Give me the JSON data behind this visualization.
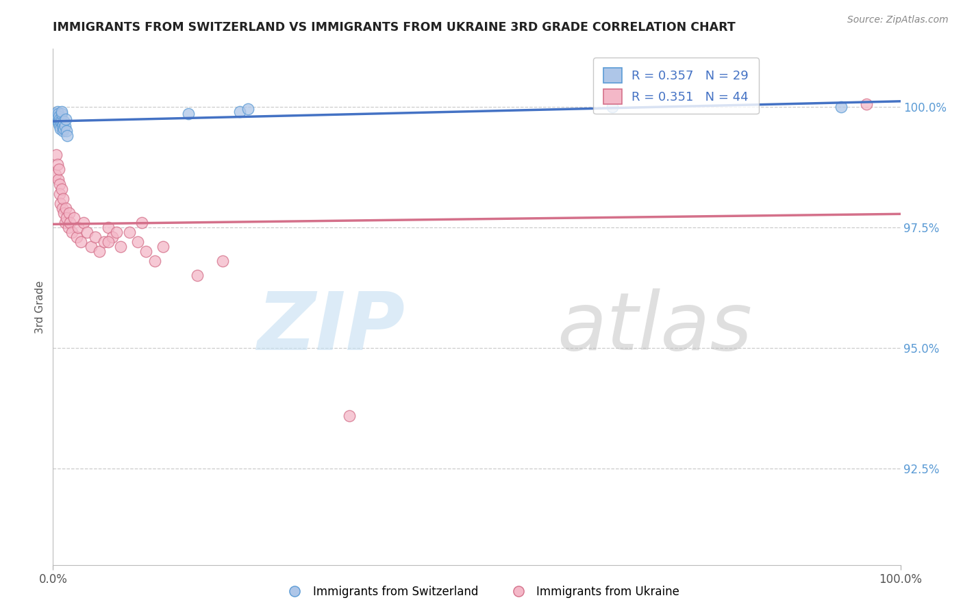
{
  "title": "IMMIGRANTS FROM SWITZERLAND VS IMMIGRANTS FROM UKRAINE 3RD GRADE CORRELATION CHART",
  "source": "Source: ZipAtlas.com",
  "ylabel": "3rd Grade",
  "yticks": [
    92.5,
    95.0,
    97.5,
    100.0
  ],
  "ytick_labels": [
    "92.5%",
    "95.0%",
    "97.5%",
    "100.0%"
  ],
  "xtick_labels": [
    "0.0%",
    "100.0%"
  ],
  "legend_labels": [
    "Immigrants from Switzerland",
    "Immigrants from Ukraine"
  ],
  "legend_R": [
    0.357,
    0.351
  ],
  "legend_N": [
    29,
    44
  ],
  "blue_fill": "#aec6e8",
  "blue_edge": "#5b9bd5",
  "pink_fill": "#f4b8c8",
  "pink_edge": "#d4708a",
  "blue_line": "#4472c4",
  "pink_line": "#d4708a",
  "ymin": 90.5,
  "ymax": 101.2,
  "xmin": 0.0,
  "xmax": 1.0,
  "swiss_x": [
    0.003,
    0.004,
    0.005,
    0.005,
    0.006,
    0.006,
    0.007,
    0.007,
    0.008,
    0.008,
    0.009,
    0.009,
    0.01,
    0.01,
    0.01,
    0.011,
    0.012,
    0.012,
    0.013,
    0.013,
    0.014,
    0.015,
    0.016,
    0.017,
    0.16,
    0.22,
    0.23,
    0.66,
    0.93
  ],
  "swiss_y": [
    99.85,
    99.75,
    99.9,
    99.8,
    99.85,
    99.7,
    99.8,
    99.65,
    99.75,
    99.6,
    99.7,
    99.55,
    99.7,
    99.85,
    99.9,
    99.6,
    99.5,
    99.65,
    99.55,
    99.7,
    99.6,
    99.75,
    99.5,
    99.4,
    99.85,
    99.9,
    99.95,
    100.0,
    100.0
  ],
  "ukraine_x": [
    0.003,
    0.004,
    0.005,
    0.006,
    0.007,
    0.008,
    0.008,
    0.009,
    0.01,
    0.011,
    0.012,
    0.013,
    0.014,
    0.015,
    0.016,
    0.018,
    0.019,
    0.02,
    0.022,
    0.025,
    0.028,
    0.03,
    0.033,
    0.036,
    0.04,
    0.045,
    0.05,
    0.055,
    0.06,
    0.065,
    0.07,
    0.08,
    0.09,
    0.1,
    0.105,
    0.11,
    0.12,
    0.13,
    0.17,
    0.2,
    0.065,
    0.075,
    0.35,
    0.96
  ],
  "ukraine_y": [
    98.6,
    99.0,
    98.8,
    98.5,
    98.7,
    98.4,
    98.2,
    98.0,
    98.3,
    97.9,
    98.1,
    97.8,
    97.6,
    97.9,
    97.7,
    97.5,
    97.8,
    97.6,
    97.4,
    97.7,
    97.3,
    97.5,
    97.2,
    97.6,
    97.4,
    97.1,
    97.3,
    97.0,
    97.2,
    97.5,
    97.3,
    97.1,
    97.4,
    97.2,
    97.6,
    97.0,
    96.8,
    97.1,
    96.5,
    96.8,
    97.2,
    97.4,
    93.6,
    100.05
  ]
}
